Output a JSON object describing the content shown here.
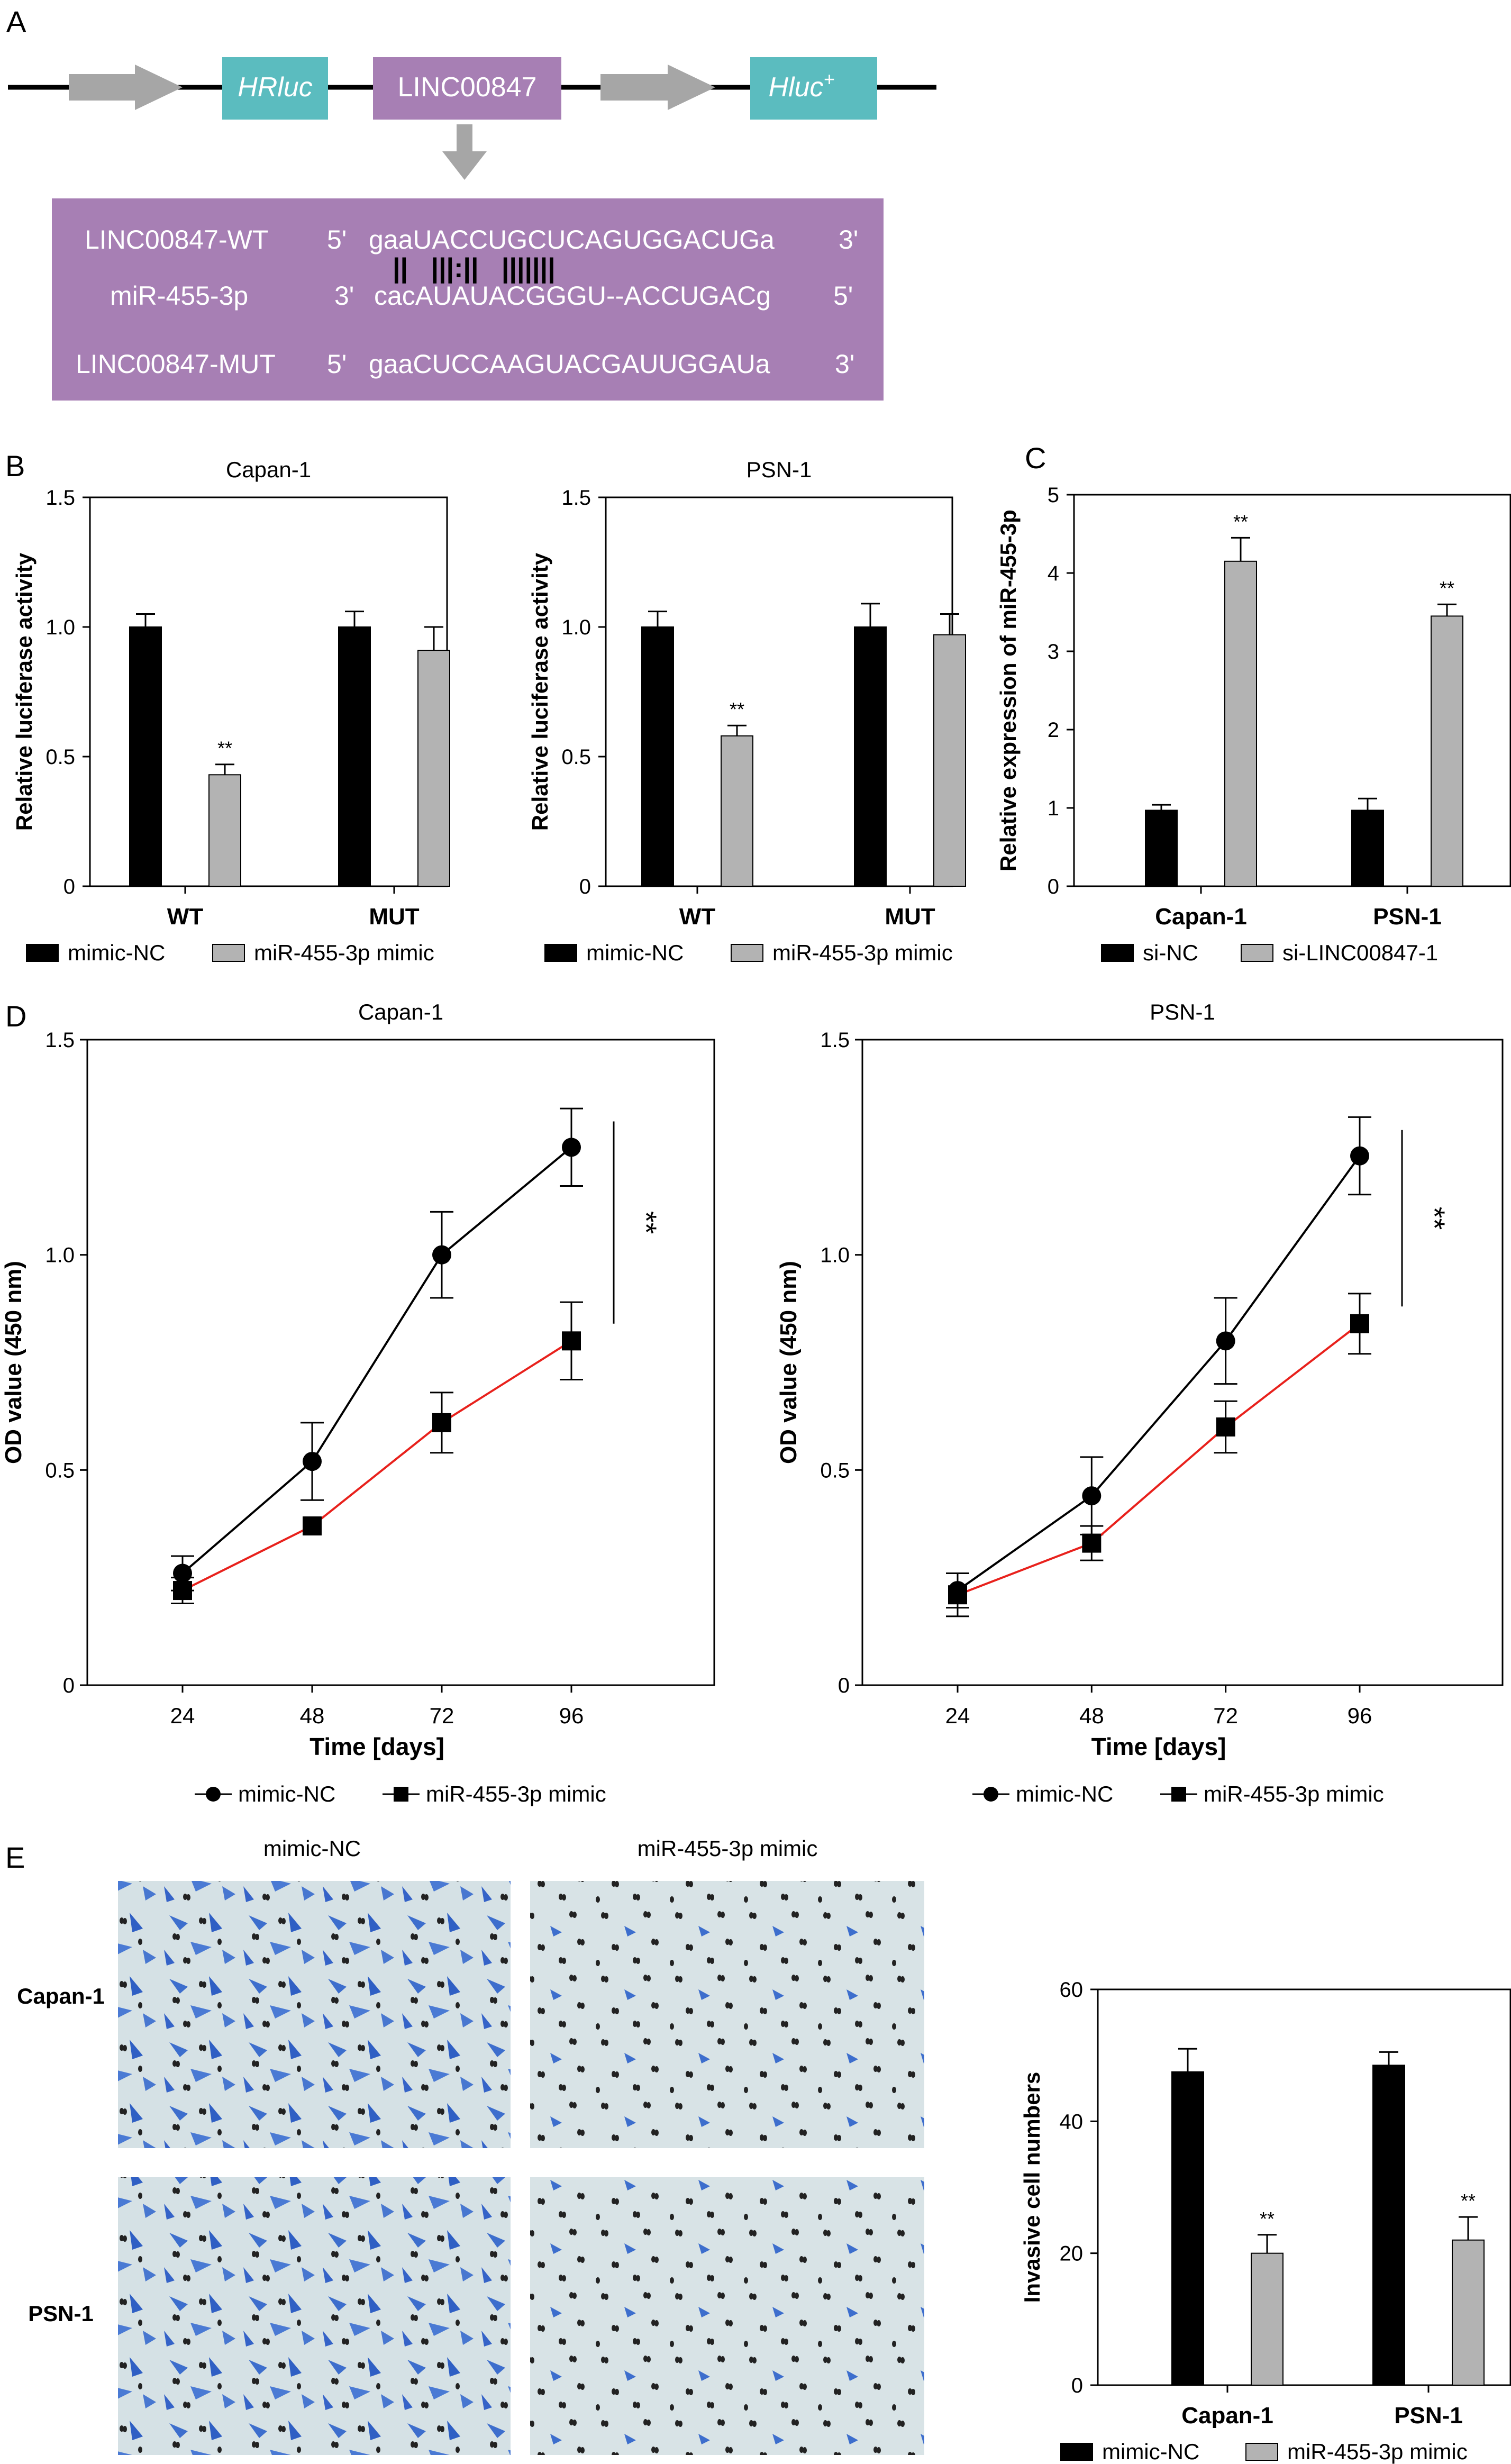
{
  "panels": {
    "A": {
      "letter": "A",
      "construct": {
        "hrluc": "HRluc",
        "insert": "LINC00847",
        "hluc": "Hluc",
        "hluc_sup": "+"
      },
      "colors": {
        "teal": "#5bbcbf",
        "purple": "#a77fb4",
        "arrow": "#a6a6a6",
        "box_fill": "#a77fb4"
      },
      "alignment": [
        {
          "name": "LINC00847-WT",
          "end5": "5'",
          "seq": "gaaUACCUGCUCAGUGGACUGa",
          "end3": "3'"
        },
        {
          "name": "miR-455-3p",
          "end5": "3'",
          "seq": "cacAUAUACGGGU--ACCUGACg",
          "end3": "5'"
        },
        {
          "name": "LINC00847-MUT",
          "end5": "5'",
          "seq": "gaaCUCCAAGUACGAUUGGAUa",
          "end3": "3'"
        }
      ],
      "pairing": "||   |||:||   |||||||"
    },
    "B": {
      "letter": "B"
    },
    "C": {
      "letter": "C"
    },
    "D": {
      "letter": "D"
    },
    "E": {
      "letter": "E",
      "col_labels": [
        "mimic-NC",
        "miR-455-3p mimic"
      ],
      "row_labels": [
        "Capan-1",
        "PSN-1"
      ]
    }
  },
  "legends": {
    "B_left": [
      "mimic-NC",
      "miR-455-3p mimic"
    ],
    "B_right": [
      "mimic-NC",
      "miR-455-3p mimic"
    ],
    "C": [
      "si-NC",
      "si-LINC00847-1"
    ],
    "D_left": [
      "mimic-NC",
      "miR-455-3p mimic"
    ],
    "D_right": [
      "mimic-NC",
      "miR-455-3p mimic"
    ],
    "E": [
      "mimic-NC",
      "miR-455-3p mimic"
    ]
  },
  "chart_data": [
    {
      "id": "B-capan",
      "type": "bar",
      "title": "Capan-1",
      "ylabel": "Relative luciferase activity",
      "xlabel": "",
      "categories": [
        "WT",
        "MUT"
      ],
      "ylim": [
        0,
        1.5
      ],
      "yticks": [
        "0",
        "0.5",
        "1.0",
        "1.5"
      ],
      "series": [
        {
          "name": "mimic-NC",
          "color": "#000000",
          "values": [
            1.0,
            1.0
          ],
          "errors": [
            0.05,
            0.06
          ]
        },
        {
          "name": "miR-455-3p mimic",
          "color": "#b3b3b3",
          "values": [
            0.43,
            0.91
          ],
          "errors": [
            0.04,
            0.09
          ]
        }
      ],
      "annotations": [
        {
          "series": 1,
          "category": 0,
          "text": "**"
        }
      ]
    },
    {
      "id": "B-psn",
      "type": "bar",
      "title": "PSN-1",
      "ylabel": "Relative luciferase activity",
      "xlabel": "",
      "categories": [
        "WT",
        "MUT"
      ],
      "ylim": [
        0,
        1.5
      ],
      "yticks": [
        "0",
        "0.5",
        "1.0",
        "1.5"
      ],
      "series": [
        {
          "name": "mimic-NC",
          "color": "#000000",
          "values": [
            1.0,
            1.0
          ],
          "errors": [
            0.06,
            0.09
          ]
        },
        {
          "name": "miR-455-3p mimic",
          "color": "#b3b3b3",
          "values": [
            0.58,
            0.97
          ],
          "errors": [
            0.04,
            0.08
          ]
        }
      ],
      "annotations": [
        {
          "series": 1,
          "category": 0,
          "text": "**"
        }
      ]
    },
    {
      "id": "C",
      "type": "bar",
      "title": "",
      "ylabel": "Relative expression of miR-455-3p",
      "xlabel": "",
      "categories": [
        "Capan-1",
        "PSN-1"
      ],
      "ylim": [
        0,
        5
      ],
      "yticks": [
        "0",
        "1",
        "2",
        "3",
        "4",
        "5"
      ],
      "series": [
        {
          "name": "si-NC",
          "color": "#000000",
          "values": [
            0.97,
            0.97
          ],
          "errors": [
            0.07,
            0.15
          ]
        },
        {
          "name": "si-LINC00847-1",
          "color": "#b3b3b3",
          "values": [
            4.15,
            3.45
          ],
          "errors": [
            0.3,
            0.15
          ]
        }
      ],
      "annotations": [
        {
          "series": 1,
          "category": 0,
          "text": "**"
        },
        {
          "series": 1,
          "category": 1,
          "text": "**"
        }
      ]
    },
    {
      "id": "D-capan",
      "type": "line",
      "title": "Capan-1",
      "xlabel": "Time [days]",
      "ylabel": "OD value (450 nm)",
      "x": [
        24,
        48,
        72,
        96
      ],
      "xticks": [
        "24",
        "48",
        "72",
        "96"
      ],
      "ylim": [
        0,
        1.5
      ],
      "yticks": [
        "0",
        "0.5",
        "1.0",
        "1.5"
      ],
      "series": [
        {
          "name": "mimic-NC",
          "color": "#000000",
          "marker": "circle",
          "values": [
            0.26,
            0.52,
            1.0,
            1.25
          ],
          "errors": [
            0.04,
            0.09,
            0.1,
            0.09
          ]
        },
        {
          "name": "miR-455-3p mimic",
          "color": "#e8211c",
          "marker": "square",
          "values": [
            0.22,
            0.37,
            0.61,
            0.8
          ],
          "errors": [
            0.03,
            0.0,
            0.07,
            0.09
          ]
        }
      ],
      "significance": "**"
    },
    {
      "id": "D-psn",
      "type": "line",
      "title": "PSN-1",
      "xlabel": "Time [days]",
      "ylabel": "OD value (450 nm)",
      "x": [
        24,
        48,
        72,
        96
      ],
      "xticks": [
        "24",
        "48",
        "72",
        "96"
      ],
      "ylim": [
        0,
        1.5
      ],
      "yticks": [
        "0",
        "0.5",
        "1.0",
        "1.5"
      ],
      "series": [
        {
          "name": "mimic-NC",
          "color": "#000000",
          "marker": "circle",
          "values": [
            0.22,
            0.44,
            0.8,
            1.23
          ],
          "errors": [
            0.04,
            0.09,
            0.1,
            0.09
          ]
        },
        {
          "name": "miR-455-3p mimic",
          "color": "#e8211c",
          "marker": "square",
          "values": [
            0.21,
            0.33,
            0.6,
            0.84
          ],
          "errors": [
            0.05,
            0.04,
            0.06,
            0.07
          ]
        }
      ],
      "significance": "**"
    },
    {
      "id": "E",
      "type": "bar",
      "title": "",
      "ylabel": "Invasive cell numbers",
      "xlabel": "",
      "categories": [
        "Capan-1",
        "PSN-1"
      ],
      "ylim": [
        0,
        60
      ],
      "yticks": [
        "0",
        "20",
        "40",
        "60"
      ],
      "series": [
        {
          "name": "mimic-NC",
          "color": "#000000",
          "values": [
            47.5,
            48.5
          ],
          "errors": [
            3.5,
            2.0
          ]
        },
        {
          "name": "miR-455-3p mimic",
          "color": "#b3b3b3",
          "values": [
            20,
            22
          ],
          "errors": [
            2.8,
            3.5
          ]
        }
      ],
      "annotations": [
        {
          "series": 1,
          "category": 0,
          "text": "**"
        },
        {
          "series": 1,
          "category": 1,
          "text": "**"
        }
      ]
    }
  ]
}
